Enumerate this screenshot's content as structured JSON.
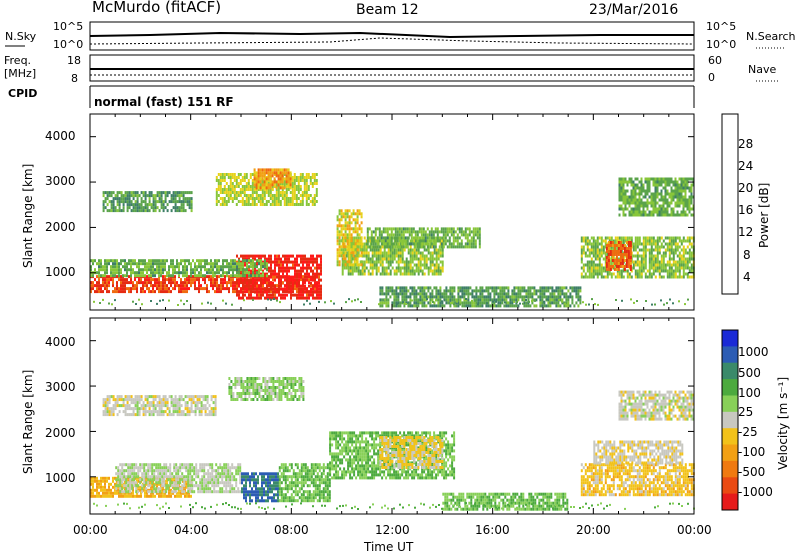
{
  "header": {
    "station": "McMurdo (fitACF)",
    "beam": "Beam 12",
    "date": "23/Mar/2016"
  },
  "params": {
    "nsky_label": "N.Sky",
    "nsky_top": "10^5",
    "nsky_bottom": "10^0",
    "nsearch_top": "10^5",
    "nsearch_bottom": "10^0",
    "nsearch_label": "N.Search",
    "freq_label_1": "Freq.",
    "freq_label_2": "[MHz]",
    "freq_top": "18",
    "freq_bottom": "8",
    "nave_top": "60",
    "nave_bottom": "0",
    "nave_label": "Nave",
    "cpid_label": "CPID",
    "cpid_value": "normal (fast) 151 RF"
  },
  "chart_data": [
    {
      "type": "heatmap",
      "name": "power-panel",
      "ylabel": "Slant Range [km]",
      "yticks": [
        "1000",
        "2000",
        "3000",
        "4000"
      ],
      "ylim": [
        180,
        4500
      ],
      "xlim": [
        "00:00",
        "24:00"
      ],
      "colorbar": {
        "label": "Power [dB]",
        "ticks": [
          "4",
          "8",
          "12",
          "16",
          "20",
          "24",
          "28"
        ],
        "colors": [
          "#1a22e6",
          "#2f56b8",
          "#3e7f66",
          "#5aa34a",
          "#88c63a",
          "#e6d21a",
          "#f2a014",
          "#f06a10",
          "#e62a12",
          "#ff1a1a"
        ]
      },
      "regions": [
        {
          "t0": 0.0,
          "t1": 9.0,
          "r0": 600,
          "r1": 950,
          "level": 28
        },
        {
          "t0": 5.8,
          "t1": 9.2,
          "r0": 450,
          "r1": 1400,
          "level": 30
        },
        {
          "t0": 0.0,
          "t1": 7.0,
          "r0": 950,
          "r1": 1300,
          "level": 12
        },
        {
          "t0": 0.5,
          "t1": 4.0,
          "r0": 2400,
          "r1": 2800,
          "level": 10
        },
        {
          "t0": 5.0,
          "t1": 9.0,
          "r0": 2500,
          "r1": 3200,
          "level": 16
        },
        {
          "t0": 6.5,
          "t1": 8.0,
          "r0": 2900,
          "r1": 3300,
          "level": 22
        },
        {
          "t0": 10.0,
          "t1": 14.0,
          "r0": 1000,
          "r1": 1800,
          "level": 14
        },
        {
          "t0": 11.0,
          "t1": 15.5,
          "r0": 1600,
          "r1": 2000,
          "level": 12
        },
        {
          "t0": 9.8,
          "t1": 10.8,
          "r0": 1200,
          "r1": 2400,
          "level": 18
        },
        {
          "t0": 11.5,
          "t1": 19.5,
          "r0": 300,
          "r1": 700,
          "level": 10
        },
        {
          "t0": 19.5,
          "t1": 24.0,
          "r0": 900,
          "r1": 1800,
          "level": 14
        },
        {
          "t0": 20.5,
          "t1": 21.5,
          "r0": 1100,
          "r1": 1700,
          "level": 26
        },
        {
          "t0": 21.0,
          "t1": 24.0,
          "r0": 2300,
          "r1": 3100,
          "level": 12
        }
      ]
    },
    {
      "type": "heatmap",
      "name": "velocity-panel",
      "ylabel": "Slant Range [km]",
      "yticks": [
        "1000",
        "2000",
        "3000",
        "4000"
      ],
      "ylim": [
        180,
        4500
      ],
      "xlabel": "Time UT",
      "xticks": [
        "00:00",
        "04:00",
        "08:00",
        "12:00",
        "16:00",
        "20:00",
        "00:00"
      ],
      "xlim": [
        "00:00",
        "24:00"
      ],
      "colorbar": {
        "label": "Velocity [m s⁻¹]",
        "ticks": [
          "1000",
          "500",
          "100",
          "25",
          "-25",
          "-100",
          "-500",
          "-1000"
        ],
        "colors": [
          "#1a2ad6",
          "#2c5cb4",
          "#3a8a6a",
          "#4caa3e",
          "#88d058",
          "#c8c8c0",
          "#f2c21a",
          "#f2a014",
          "#f07a10",
          "#ea4a12",
          "#e61a1a"
        ]
      },
      "regions": [
        {
          "t0": 0.0,
          "t1": 4.0,
          "r0": 600,
          "r1": 1000,
          "level": -300
        },
        {
          "t0": 1.0,
          "t1": 6.0,
          "r0": 700,
          "r1": 1300,
          "level": 80
        },
        {
          "t0": 6.0,
          "t1": 7.5,
          "r0": 500,
          "r1": 1100,
          "level": 700
        },
        {
          "t0": 7.5,
          "t1": 9.5,
          "r0": 500,
          "r1": 1300,
          "level": 300
        },
        {
          "t0": 0.5,
          "t1": 5.0,
          "r0": 2400,
          "r1": 2800,
          "level": 0
        },
        {
          "t0": 5.5,
          "t1": 8.5,
          "r0": 2700,
          "r1": 3200,
          "level": 200
        },
        {
          "t0": 9.5,
          "t1": 14.5,
          "r0": 1000,
          "r1": 2000,
          "level": 300
        },
        {
          "t0": 11.5,
          "t1": 14.0,
          "r0": 1200,
          "r1": 1900,
          "level": -150
        },
        {
          "t0": 14.0,
          "t1": 19.0,
          "r0": 300,
          "r1": 650,
          "level": 300
        },
        {
          "t0": 19.5,
          "t1": 24.0,
          "r0": 600,
          "r1": 1300,
          "level": -200
        },
        {
          "t0": 20.0,
          "t1": 23.5,
          "r0": 1300,
          "r1": 1800,
          "level": -60
        },
        {
          "t0": 21.0,
          "t1": 24.0,
          "r0": 2300,
          "r1": 2900,
          "level": 0
        }
      ]
    }
  ]
}
